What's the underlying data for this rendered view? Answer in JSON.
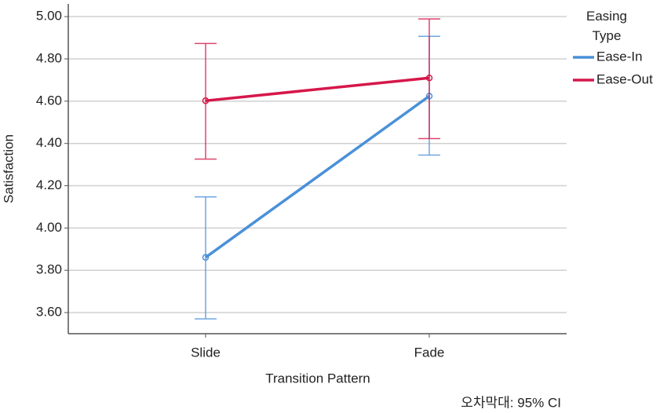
{
  "chart_data": {
    "type": "line",
    "x_label": "Transition Pattern",
    "y_label": "Satisfaction",
    "categories": [
      "Slide",
      "Fade"
    ],
    "series": [
      {
        "name": "Ease-In",
        "color": "#4a90d9",
        "values": [
          3.861,
          4.624
        ],
        "ci_low": [
          3.57,
          4.345
        ],
        "ci_high": [
          4.147,
          4.907
        ]
      },
      {
        "name": "Ease-Out",
        "color": "#d6174a",
        "values": [
          4.602,
          4.71
        ],
        "ci_low": [
          4.326,
          4.423
        ],
        "ci_high": [
          4.873,
          4.989
        ]
      }
    ],
    "ylim": [
      3.5,
      5.06
    ],
    "yticks": [
      {
        "value": 3.6,
        "label": "3.60"
      },
      {
        "value": 3.8,
        "label": "3.80"
      },
      {
        "value": 4.0,
        "label": "4.00"
      },
      {
        "value": 4.2,
        "label": "4.20"
      },
      {
        "value": 4.4,
        "label": "4.40"
      },
      {
        "value": 4.6,
        "label": "4.60"
      },
      {
        "value": 4.8,
        "label": "4.80"
      },
      {
        "value": 5.0,
        "label": "5.00"
      }
    ],
    "grid": true,
    "legend_title": "Easing Type",
    "legend_position": "right",
    "footnote": "오차막대: 95% CI"
  }
}
